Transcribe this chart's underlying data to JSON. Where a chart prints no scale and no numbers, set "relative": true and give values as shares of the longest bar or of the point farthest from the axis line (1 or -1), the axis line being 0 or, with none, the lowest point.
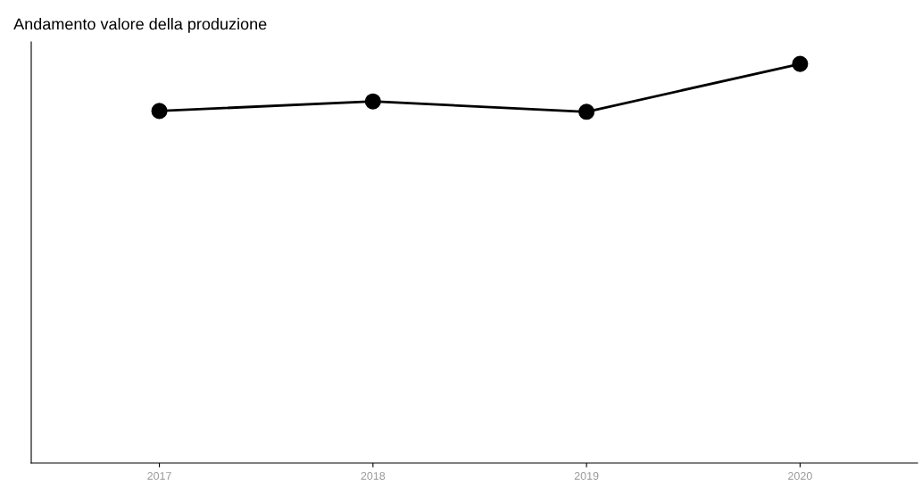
{
  "chart_data": {
    "type": "line",
    "title": "Andamento valore della produzione",
    "categories": [
      "2017",
      "2018",
      "2019",
      "2020"
    ],
    "values": [
      0.882,
      0.906,
      0.88,
      1
    ],
    "color": "#000000",
    "relative": true,
    "marker": "circle",
    "line_style": "solid",
    "grid": false,
    "legend": false
  }
}
